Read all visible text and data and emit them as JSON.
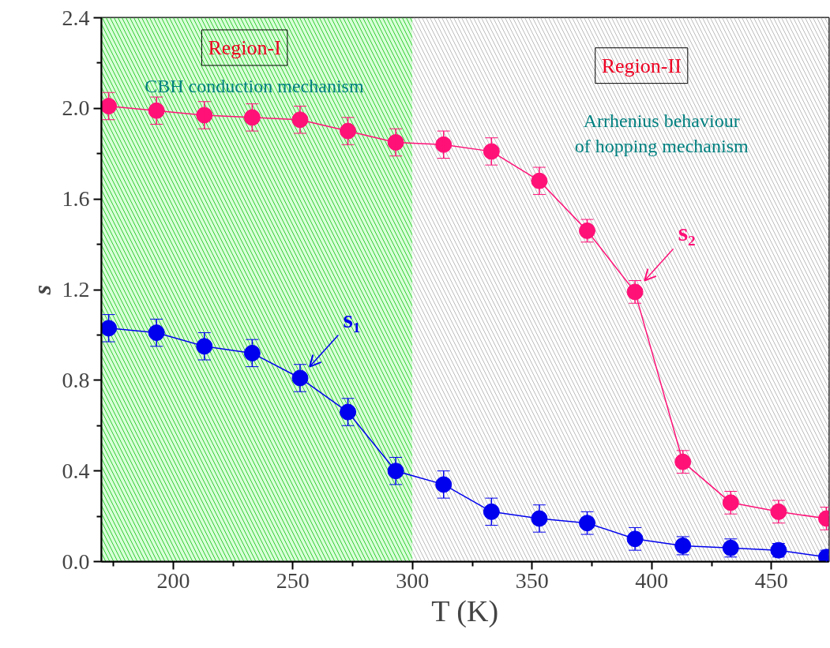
{
  "chart_data": {
    "type": "line",
    "xlabel": "T (K)",
    "ylabel": "s",
    "x": [
      173,
      193,
      213,
      233,
      253,
      273,
      293,
      313,
      333,
      353,
      373,
      393,
      413,
      433,
      453,
      473
    ],
    "series": [
      {
        "name": "s₂",
        "color": "#ff1177",
        "marker": "circle",
        "values": [
          2.01,
          1.99,
          1.97,
          1.96,
          1.95,
          1.9,
          1.85,
          1.84,
          1.81,
          1.68,
          1.46,
          1.19,
          0.44,
          0.26,
          0.22,
          0.19
        ],
        "errors": [
          0.06,
          0.06,
          0.06,
          0.06,
          0.06,
          0.06,
          0.06,
          0.06,
          0.06,
          0.06,
          0.05,
          0.05,
          0.05,
          0.05,
          0.05,
          0.05
        ]
      },
      {
        "name": "s₁",
        "color": "#0000ee",
        "marker": "circle",
        "values": [
          1.03,
          1.01,
          0.95,
          0.92,
          0.81,
          0.66,
          0.4,
          0.34,
          0.22,
          0.19,
          0.17,
          0.1,
          0.07,
          0.06,
          0.05,
          0.02
        ],
        "errors": [
          0.06,
          0.06,
          0.06,
          0.06,
          0.06,
          0.06,
          0.06,
          0.06,
          0.06,
          0.06,
          0.05,
          0.05,
          0.04,
          0.04,
          0.03,
          0.03
        ]
      }
    ],
    "xlim": [
      170,
      474
    ],
    "xticks": [
      200,
      250,
      300,
      350,
      400,
      450
    ],
    "ylim": [
      0,
      2.4
    ],
    "yticks": [
      {
        "value": 0,
        "label": "0.0"
      },
      {
        "value": 0.4,
        "label": "0.4"
      },
      {
        "value": 0.8,
        "label": "0.8"
      },
      {
        "value": 1.2,
        "label": "1.2"
      },
      {
        "value": 1.6,
        "label": "1.6"
      },
      {
        "value": 2,
        "label": "2.0"
      },
      {
        "value": 2.4,
        "label": "2.4"
      }
    ],
    "bands": [
      {
        "axis": "x",
        "from": 170,
        "to": 300,
        "label": "Region-I",
        "color": "#33cc33"
      },
      {
        "axis": "x",
        "from": 300,
        "to": 474,
        "label": "Region-II",
        "color": "#bbbbbb"
      }
    ],
    "annotations": [
      "CBH conduction mechanism",
      "Arrhenius behaviour\nof hopping mechanism"
    ],
    "grid": false
  }
}
